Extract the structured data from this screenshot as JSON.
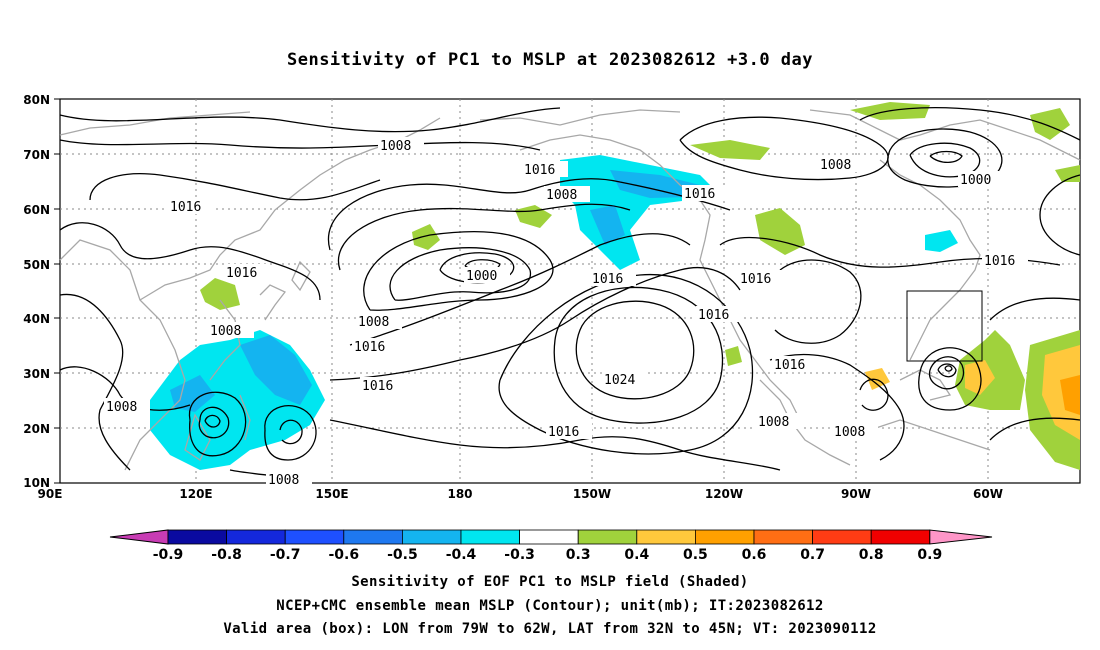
{
  "title": "Sensitivity of PC1 to MSLP at 2023082612 +3.0 day",
  "footer": {
    "line1": "Sensitivity of EOF PC1 to MSLP field (Shaded)",
    "line2": "NCEP+CMC ensemble mean MSLP (Contour); unit(mb); IT:2023082612",
    "line3": "Valid area (box): LON from 79W to 62W, LAT from 32N to 45N; VT: 2023090112"
  },
  "axes": {
    "lat_labels": [
      "80N",
      "70N",
      "60N",
      "50N",
      "40N",
      "30N",
      "20N",
      "10N"
    ],
    "lon_labels": [
      "90E",
      "120E",
      "150E",
      "180",
      "150W",
      "120W",
      "90W",
      "60W"
    ]
  },
  "contour_labels": {
    "c1008a": "1008",
    "c1016a": "1016",
    "c1008b": "1008",
    "c1016b": "1016",
    "c1008c": "1008",
    "c1016c": "1016",
    "c1000a": "1000",
    "c1016d": "1016",
    "c1008d": "1008",
    "c1016e": "1016",
    "c1000b": "1000",
    "c1016f": "1016",
    "c1016g": "1016",
    "c1008e": "1008",
    "c1016h": "1016",
    "c1008f": "1008",
    "c1016i": "1016",
    "c1024": "1024",
    "c1016j": "1016",
    "c1008g": "1008",
    "c1008h": "1008",
    "c1016k": "1016",
    "c1008i": "1008",
    "c1008j": "1008"
  },
  "colorbar": {
    "labels": [
      "-0.9",
      "-0.8",
      "-0.7",
      "-0.6",
      "-0.5",
      "-0.4",
      "-0.3",
      "0.3",
      "0.4",
      "0.5",
      "0.6",
      "0.7",
      "0.8",
      "0.9"
    ],
    "colors": [
      "#0a0aa0",
      "#1428dc",
      "#1e50ff",
      "#1e78f0",
      "#14b4f0",
      "#00e6f0",
      "#ffffff",
      "#a0d23c",
      "#ffc83c",
      "#ffa000",
      "#ff6e14",
      "#ff3c14",
      "#f00000"
    ],
    "low_arrow_color": "#c83cb4",
    "high_arrow_color": "#ff96c8"
  },
  "valid_box": {
    "lon_from": "79W",
    "lon_to": "62W",
    "lat_from": "32N",
    "lat_to": "45N"
  }
}
